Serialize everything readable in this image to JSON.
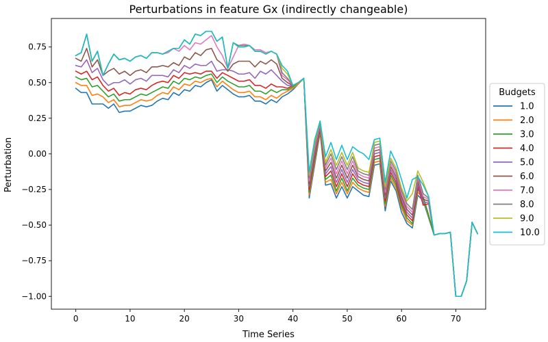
{
  "chart_data": {
    "type": "line",
    "title": "Perturbations in feature Gx (indirectly changeable)",
    "xlabel": "Time Series",
    "ylabel": "Perturbation",
    "xlim": [
      -4.5,
      75.5
    ],
    "ylim": [
      -1.09,
      0.95
    ],
    "xticks": [
      0,
      10,
      20,
      30,
      40,
      50,
      60,
      70
    ],
    "yticks": [
      -1.0,
      -0.75,
      -0.5,
      -0.25,
      0.0,
      0.25,
      0.5,
      0.75
    ],
    "ytick_labels": [
      "−1.00",
      "−0.75",
      "−0.50",
      "−0.25",
      "0.00",
      "0.25",
      "0.50",
      "0.75"
    ],
    "xtick_labels": [
      "0",
      "10",
      "20",
      "30",
      "40",
      "50",
      "60",
      "70"
    ],
    "grid": false,
    "legend": {
      "title": "Budgets",
      "placement": "right-outside"
    },
    "common_tail": [
      -0.57,
      -0.56,
      -0.56,
      -0.55,
      -1.0,
      -1.0,
      -0.89,
      -0.48,
      -0.56
    ],
    "series": [
      {
        "name": "1.0",
        "color": "#1f77b4",
        "values": [
          0.46,
          0.43,
          0.43,
          0.35,
          0.35,
          0.35,
          0.32,
          0.35,
          0.29,
          0.3,
          0.3,
          0.32,
          0.34,
          0.33,
          0.34,
          0.37,
          0.39,
          0.38,
          0.43,
          0.41,
          0.45,
          0.44,
          0.48,
          0.47,
          0.5,
          0.52,
          0.44,
          0.48,
          0.45,
          0.42,
          0.4,
          0.4,
          0.41,
          0.37,
          0.37,
          0.35,
          0.38,
          0.36,
          0.4,
          0.42,
          0.45,
          0.49,
          0.53,
          -0.31,
          -0.08,
          0.15,
          -0.22,
          -0.21,
          -0.31,
          -0.23,
          -0.31,
          -0.23,
          -0.26,
          -0.29,
          -0.3,
          -0.08,
          -0.07,
          -0.4,
          -0.19,
          -0.26,
          -0.41,
          -0.49,
          -0.52,
          -0.29,
          -0.33,
          -0.45
        ]
      },
      {
        "name": "2.0",
        "color": "#ff7f0e",
        "values": [
          0.5,
          0.48,
          0.48,
          0.41,
          0.42,
          0.4,
          0.36,
          0.38,
          0.33,
          0.34,
          0.34,
          0.36,
          0.38,
          0.37,
          0.38,
          0.41,
          0.43,
          0.42,
          0.47,
          0.45,
          0.49,
          0.48,
          0.51,
          0.5,
          0.52,
          0.53,
          0.47,
          0.51,
          0.48,
          0.45,
          0.43,
          0.43,
          0.44,
          0.4,
          0.4,
          0.38,
          0.41,
          0.39,
          0.42,
          0.44,
          0.46,
          0.49,
          0.53,
          -0.29,
          -0.06,
          0.16,
          -0.2,
          -0.18,
          -0.28,
          -0.2,
          -0.28,
          -0.2,
          -0.24,
          -0.26,
          -0.27,
          -0.06,
          -0.05,
          -0.37,
          -0.17,
          -0.24,
          -0.38,
          -0.47,
          -0.5,
          -0.27,
          -0.31,
          -0.44
        ]
      },
      {
        "name": "3.0",
        "color": "#2ca02c",
        "values": [
          0.54,
          0.52,
          0.53,
          0.47,
          0.48,
          0.44,
          0.4,
          0.42,
          0.37,
          0.38,
          0.38,
          0.4,
          0.42,
          0.41,
          0.43,
          0.45,
          0.47,
          0.46,
          0.51,
          0.49,
          0.53,
          0.52,
          0.54,
          0.53,
          0.55,
          0.56,
          0.5,
          0.54,
          0.51,
          0.49,
          0.47,
          0.47,
          0.48,
          0.44,
          0.44,
          0.42,
          0.45,
          0.43,
          0.45,
          0.45,
          0.47,
          0.5,
          0.53,
          -0.27,
          -0.04,
          0.17,
          -0.18,
          -0.15,
          -0.26,
          -0.17,
          -0.26,
          -0.17,
          -0.22,
          -0.24,
          -0.25,
          -0.04,
          -0.03,
          -0.35,
          -0.15,
          -0.22,
          -0.36,
          -0.45,
          -0.49,
          -0.25,
          -0.3,
          -0.43
        ]
      },
      {
        "name": "4.0",
        "color": "#d62728",
        "values": [
          0.58,
          0.56,
          0.58,
          0.52,
          0.54,
          0.48,
          0.44,
          0.46,
          0.41,
          0.43,
          0.42,
          0.45,
          0.46,
          0.45,
          0.48,
          0.5,
          0.51,
          0.5,
          0.55,
          0.53,
          0.57,
          0.56,
          0.57,
          0.56,
          0.58,
          0.58,
          0.53,
          0.57,
          0.55,
          0.53,
          0.51,
          0.51,
          0.52,
          0.48,
          0.48,
          0.46,
          0.49,
          0.47,
          0.47,
          0.46,
          0.48,
          0.5,
          0.53,
          -0.25,
          -0.02,
          0.18,
          -0.16,
          -0.12,
          -0.23,
          -0.14,
          -0.23,
          -0.14,
          -0.2,
          -0.22,
          -0.23,
          -0.02,
          -0.01,
          -0.33,
          -0.13,
          -0.2,
          -0.34,
          -0.43,
          -0.47,
          -0.23,
          -0.36,
          -0.35
        ]
      },
      {
        "name": "5.0",
        "color": "#9467bd",
        "values": [
          0.62,
          0.61,
          0.66,
          0.57,
          0.6,
          0.52,
          0.48,
          0.5,
          0.5,
          0.52,
          0.49,
          0.52,
          0.53,
          0.51,
          0.55,
          0.55,
          0.55,
          0.54,
          0.59,
          0.57,
          0.62,
          0.6,
          0.63,
          0.62,
          0.62,
          0.65,
          0.58,
          0.59,
          0.59,
          0.58,
          0.56,
          0.56,
          0.57,
          0.53,
          0.58,
          0.56,
          0.59,
          0.55,
          0.51,
          0.48,
          0.48,
          0.5,
          0.53,
          -0.23,
          0.0,
          0.19,
          -0.14,
          -0.09,
          -0.2,
          -0.11,
          -0.2,
          -0.11,
          -0.18,
          -0.2,
          -0.21,
          0.0,
          0.01,
          -0.31,
          -0.11,
          -0.18,
          -0.32,
          -0.41,
          -0.45,
          -0.21,
          -0.34,
          -0.34
        ]
      },
      {
        "name": "6.0",
        "color": "#8c564b",
        "values": [
          0.67,
          0.65,
          0.74,
          0.61,
          0.66,
          0.55,
          0.58,
          0.6,
          0.56,
          0.58,
          0.55,
          0.58,
          0.59,
          0.57,
          0.61,
          0.61,
          0.62,
          0.61,
          0.64,
          0.62,
          0.68,
          0.66,
          0.71,
          0.69,
          0.73,
          0.74,
          0.66,
          0.63,
          0.58,
          0.63,
          0.65,
          0.65,
          0.65,
          0.61,
          0.65,
          0.63,
          0.66,
          0.63,
          0.53,
          0.5,
          0.48,
          0.5,
          0.53,
          -0.21,
          0.02,
          0.2,
          -0.12,
          -0.06,
          -0.17,
          -0.08,
          -0.17,
          -0.08,
          -0.16,
          -0.18,
          -0.19,
          0.02,
          0.03,
          -0.29,
          -0.09,
          -0.16,
          -0.3,
          -0.39,
          -0.43,
          -0.19,
          -0.32,
          -0.33
        ]
      },
      {
        "name": "7.0",
        "color": "#e377c2",
        "values": [
          0.69,
          0.71,
          0.84,
          0.65,
          0.72,
          0.55,
          0.63,
          0.7,
          0.66,
          0.67,
          0.65,
          0.68,
          0.69,
          0.67,
          0.71,
          0.71,
          0.7,
          0.71,
          0.74,
          0.72,
          0.76,
          0.73,
          0.78,
          0.77,
          0.8,
          0.83,
          0.75,
          0.69,
          0.6,
          0.68,
          0.76,
          0.77,
          0.76,
          0.73,
          0.73,
          0.71,
          0.72,
          0.7,
          0.55,
          0.52,
          0.48,
          0.5,
          0.53,
          -0.19,
          0.04,
          0.21,
          -0.1,
          -0.03,
          -0.14,
          -0.05,
          -0.14,
          -0.05,
          -0.14,
          -0.16,
          -0.17,
          0.04,
          0.05,
          -0.27,
          -0.07,
          -0.14,
          -0.28,
          -0.37,
          -0.41,
          -0.17,
          -0.3,
          -0.32
        ]
      },
      {
        "name": "8.0",
        "color": "#7f7f7f",
        "values": [
          0.69,
          0.71,
          0.84,
          0.65,
          0.72,
          0.55,
          0.63,
          0.7,
          0.66,
          0.67,
          0.65,
          0.68,
          0.69,
          0.67,
          0.71,
          0.71,
          0.7,
          0.72,
          0.74,
          0.74,
          0.8,
          0.77,
          0.84,
          0.83,
          0.86,
          0.86,
          0.79,
          0.82,
          0.6,
          0.78,
          0.76,
          0.76,
          0.76,
          0.72,
          0.72,
          0.7,
          0.72,
          0.7,
          0.57,
          0.53,
          0.48,
          0.5,
          0.53,
          -0.17,
          0.06,
          0.22,
          -0.08,
          0.0,
          -0.11,
          -0.02,
          -0.11,
          -0.02,
          -0.12,
          -0.14,
          -0.15,
          0.06,
          0.07,
          -0.25,
          -0.05,
          -0.12,
          -0.26,
          -0.35,
          -0.39,
          -0.15,
          -0.28,
          -0.31
        ]
      },
      {
        "name": "9.0",
        "color": "#bcbd22",
        "values": [
          0.69,
          0.71,
          0.84,
          0.65,
          0.72,
          0.55,
          0.63,
          0.7,
          0.66,
          0.67,
          0.65,
          0.68,
          0.69,
          0.67,
          0.71,
          0.71,
          0.7,
          0.72,
          0.74,
          0.74,
          0.8,
          0.77,
          0.84,
          0.83,
          0.86,
          0.86,
          0.79,
          0.82,
          0.6,
          0.78,
          0.75,
          0.75,
          0.76,
          0.72,
          0.72,
          0.7,
          0.72,
          0.7,
          0.6,
          0.56,
          0.48,
          0.5,
          0.53,
          -0.15,
          0.08,
          0.23,
          -0.06,
          0.03,
          -0.08,
          0.01,
          -0.08,
          0.01,
          -0.1,
          -0.12,
          -0.13,
          0.08,
          0.09,
          -0.23,
          -0.03,
          -0.1,
          -0.24,
          -0.33,
          -0.28,
          -0.12,
          -0.2,
          -0.3
        ]
      },
      {
        "name": "10.0",
        "color": "#17becf",
        "values": [
          0.69,
          0.71,
          0.84,
          0.65,
          0.72,
          0.55,
          0.63,
          0.7,
          0.66,
          0.67,
          0.65,
          0.68,
          0.69,
          0.67,
          0.71,
          0.71,
          0.7,
          0.72,
          0.74,
          0.74,
          0.8,
          0.77,
          0.84,
          0.83,
          0.86,
          0.86,
          0.79,
          0.82,
          0.6,
          0.78,
          0.75,
          0.75,
          0.76,
          0.72,
          0.72,
          0.7,
          0.72,
          0.7,
          0.62,
          0.58,
          0.48,
          0.5,
          0.53,
          -0.13,
          0.1,
          0.23,
          -0.02,
          0.08,
          -0.04,
          0.06,
          -0.04,
          0.05,
          0.02,
          0.0,
          -0.04,
          0.1,
          0.11,
          -0.2,
          0.02,
          -0.06,
          -0.18,
          -0.31,
          -0.18,
          -0.16,
          -0.22,
          -0.3
        ]
      }
    ]
  }
}
